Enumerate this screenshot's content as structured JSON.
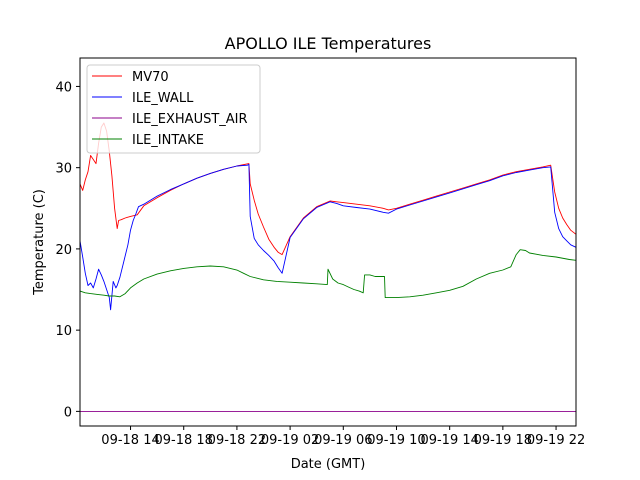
{
  "chart_data": {
    "type": "line",
    "title": "APOLLO ILE Temperatures",
    "xlabel": "Date (GMT)",
    "ylabel": "Temperature (C)",
    "xlim": [
      10.2,
      47.5
    ],
    "ylim": [
      -1.8,
      43.5
    ],
    "x_ticks": [
      {
        "value": 14,
        "label": "09-18 14"
      },
      {
        "value": 18,
        "label": "09-18 18"
      },
      {
        "value": 22,
        "label": "09-18 22"
      },
      {
        "value": 26,
        "label": "09-19 02"
      },
      {
        "value": 30,
        "label": "09-19 06"
      },
      {
        "value": 34,
        "label": "09-19 10"
      },
      {
        "value": 38,
        "label": "09-19 14"
      },
      {
        "value": 42,
        "label": "09-19 18"
      },
      {
        "value": 46,
        "label": "09-19 22"
      }
    ],
    "y_ticks": [
      0,
      10,
      20,
      30,
      40
    ],
    "legend": {
      "position": "top-left"
    },
    "series": [
      {
        "name": "MV70",
        "color": "#ff0000",
        "x": [
          10.2,
          10.4,
          10.6,
          10.8,
          11.0,
          11.2,
          11.4,
          11.6,
          11.8,
          12.0,
          12.2,
          12.4,
          12.6,
          12.8,
          13.0,
          13.1,
          13.3,
          13.6,
          14.0,
          14.5,
          15,
          16,
          17,
          18,
          19,
          20,
          21,
          22,
          22.9,
          23.0,
          23.3,
          23.6,
          24.0,
          24.4,
          24.8,
          25.1,
          25.4,
          26,
          27,
          28,
          29,
          29.5,
          30,
          31,
          32,
          33,
          33.4,
          34,
          35,
          36,
          37,
          38,
          39,
          40,
          41,
          42,
          43,
          44,
          45,
          45.6,
          45.9,
          46.2,
          46.5,
          46.8,
          47.1,
          47.5
        ],
        "values": [
          28,
          27.2,
          28.5,
          29.5,
          31.5,
          31,
          30.5,
          33,
          35,
          35.5,
          34.5,
          32,
          29,
          25,
          22.5,
          23.5,
          23.6,
          23.8,
          24.0,
          24.2,
          25.3,
          26.3,
          27.2,
          28.0,
          28.7,
          29.3,
          29.8,
          30.2,
          30.5,
          28,
          26,
          24.3,
          22.7,
          21.2,
          20.2,
          19.6,
          19.3,
          21.5,
          23.8,
          25.2,
          25.9,
          25.8,
          25.7,
          25.5,
          25.3,
          25.0,
          24.8,
          25.0,
          25.5,
          26.0,
          26.5,
          27.0,
          27.5,
          28.0,
          28.5,
          29.1,
          29.5,
          29.8,
          30.1,
          30.3,
          27,
          25,
          23.8,
          23.0,
          22.3,
          21.8
        ]
      },
      {
        "name": "ILE_WALL",
        "color": "#0000ff",
        "x": [
          10.2,
          10.4,
          10.6,
          10.8,
          11.0,
          11.2,
          11.4,
          11.6,
          11.8,
          12.0,
          12.2,
          12.4,
          12.5,
          12.7,
          12.9,
          13.0,
          13.2,
          13.5,
          13.8,
          14.0,
          14.2,
          14.4,
          14.6,
          15,
          16,
          17,
          18,
          19,
          20,
          21,
          22,
          22.8,
          22.9,
          23.0,
          23.3,
          23.6,
          24.0,
          24.4,
          24.8,
          25.1,
          25.4,
          26,
          27,
          28,
          29,
          29.5,
          30,
          31,
          32,
          33,
          33.4,
          34,
          35,
          36,
          37,
          38,
          39,
          40,
          41,
          42,
          43,
          44,
          45,
          45.6,
          45.9,
          46.2,
          46.5,
          46.8,
          47.1,
          47.5
        ],
        "values": [
          21,
          19,
          17,
          15.5,
          15.8,
          15.2,
          16.3,
          17.5,
          16.8,
          16,
          15,
          14,
          12.5,
          16,
          15.2,
          15.5,
          16.5,
          18.5,
          20.5,
          22.3,
          23.5,
          24.3,
          25.2,
          25.5,
          26.5,
          27.3,
          28.0,
          28.7,
          29.3,
          29.8,
          30.2,
          30.3,
          30.4,
          24,
          21.3,
          20.5,
          19.8,
          19.2,
          18.5,
          17.7,
          17.0,
          21.4,
          23.7,
          25.1,
          25.8,
          25.6,
          25.3,
          25.1,
          24.9,
          24.5,
          24.4,
          24.9,
          25.4,
          25.9,
          26.4,
          26.9,
          27.4,
          27.9,
          28.4,
          29.0,
          29.4,
          29.7,
          30.0,
          30.1,
          24.5,
          22.5,
          21.5,
          21.0,
          20.5,
          20.2
        ]
      },
      {
        "name": "ILE_EXHAUST_AIR",
        "color": "#8b008b",
        "x": [
          10.2,
          47.5
        ],
        "values": [
          0,
          0
        ]
      },
      {
        "name": "ILE_INTAKE",
        "color": "#008000",
        "x": [
          10.2,
          10.6,
          11.0,
          11.5,
          12.0,
          12.4,
          12.8,
          13.2,
          13.6,
          14.0,
          14.5,
          15,
          16,
          17,
          18,
          19,
          20,
          21,
          22,
          22.5,
          23,
          24,
          25,
          26,
          27,
          28,
          28.8,
          28.85,
          29.2,
          29.6,
          30,
          30.4,
          30.8,
          31.2,
          31.5,
          31.6,
          32.0,
          32.4,
          32.8,
          33.1,
          33.15,
          34,
          35,
          36,
          37,
          38,
          39,
          40,
          41,
          42,
          42.6,
          43,
          43.3,
          43.7,
          44,
          45,
          46,
          47,
          47.5
        ],
        "values": [
          14.8,
          14.6,
          14.5,
          14.4,
          14.3,
          14.2,
          14.2,
          14.1,
          14.5,
          15.2,
          15.8,
          16.3,
          16.9,
          17.3,
          17.6,
          17.8,
          17.9,
          17.8,
          17.4,
          17.0,
          16.6,
          16.2,
          16.0,
          15.9,
          15.8,
          15.7,
          15.6,
          17.5,
          16.3,
          15.8,
          15.6,
          15.3,
          15.0,
          14.8,
          14.6,
          16.8,
          16.8,
          16.6,
          16.6,
          16.6,
          14.0,
          14.0,
          14.1,
          14.3,
          14.6,
          14.9,
          15.4,
          16.3,
          17.0,
          17.4,
          17.8,
          19.3,
          19.9,
          19.8,
          19.5,
          19.2,
          19.0,
          18.7,
          18.6
        ]
      }
    ]
  }
}
